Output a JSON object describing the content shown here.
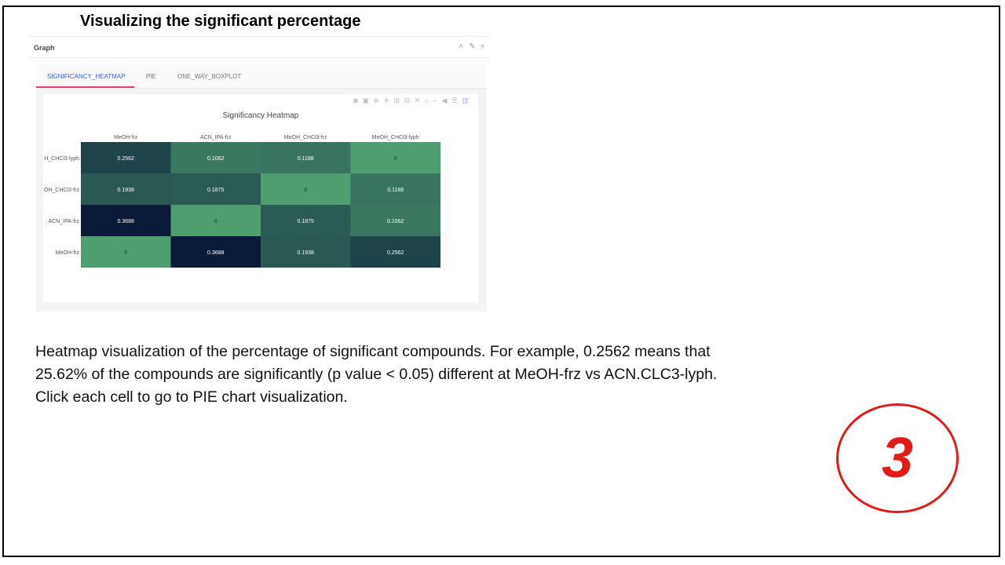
{
  "slide": {
    "title": "Visualizing the significant percentage",
    "caption": [
      "Heatmap visualization of the percentage of significant compounds. For example, 0.2562 means that",
      "25.62% of the compounds are significantly (p value < 0.05) different at MeOH-frz vs ACN.CLC3-lyph.",
      "Click each cell to go to PIE chart visualization."
    ],
    "step_number": "3",
    "accent_color": "#e31a1a"
  },
  "panel": {
    "title": "Graph",
    "controls": [
      "chevron-up-icon",
      "wrench-icon",
      "close-icon"
    ]
  },
  "tabs": [
    {
      "label": "SIGNIFICANCY_HEATMAP",
      "active": true
    },
    {
      "label": "PIE",
      "active": false
    },
    {
      "label": "ONE_WAY_BOXPLOT",
      "active": false
    }
  ],
  "modebar_icons": [
    "camera-icon",
    "save-icon",
    "zoom-icon",
    "pan-icon",
    "zoom-in-icon",
    "zoom-out-icon",
    "autoscale-icon",
    "home-icon",
    "spike-icon",
    "hover-closest-icon",
    "hover-compare-icon",
    "plotly-logo-icon"
  ],
  "chart_data": {
    "type": "heatmap",
    "title": "Significancy Heatmap",
    "x_categories": [
      "MeOH-frz",
      "ACN_IPA-frz",
      "MeOH_CHCl3-frz",
      "MeOH_CHCl3-lyph"
    ],
    "y_categories": [
      "H_CHCl3-lyph",
      "OH_CHCl3-frz",
      "ACN_IPA-frz",
      "MeOH-frz"
    ],
    "values": [
      [
        0.2562,
        0.1062,
        0.1188,
        0
      ],
      [
        0.1938,
        0.1875,
        0,
        0.1188
      ],
      [
        0.3688,
        0,
        0.1875,
        0.1062
      ],
      [
        0,
        0.3688,
        0.1938,
        0.2562
      ]
    ],
    "value_labels": [
      [
        "0.2562",
        "0.1062",
        "0.1188",
        "0"
      ],
      [
        "0.1938",
        "0.1875",
        "0",
        "0.1188"
      ],
      [
        "0.3688",
        "0",
        "0.1875",
        "0.1062"
      ],
      [
        "0",
        "0.3688",
        "0.1938",
        "0.2562"
      ]
    ],
    "colorscale": [
      "#4e9e70",
      "#0a1b3a"
    ],
    "x_axis_position": "top",
    "legend": "none"
  }
}
